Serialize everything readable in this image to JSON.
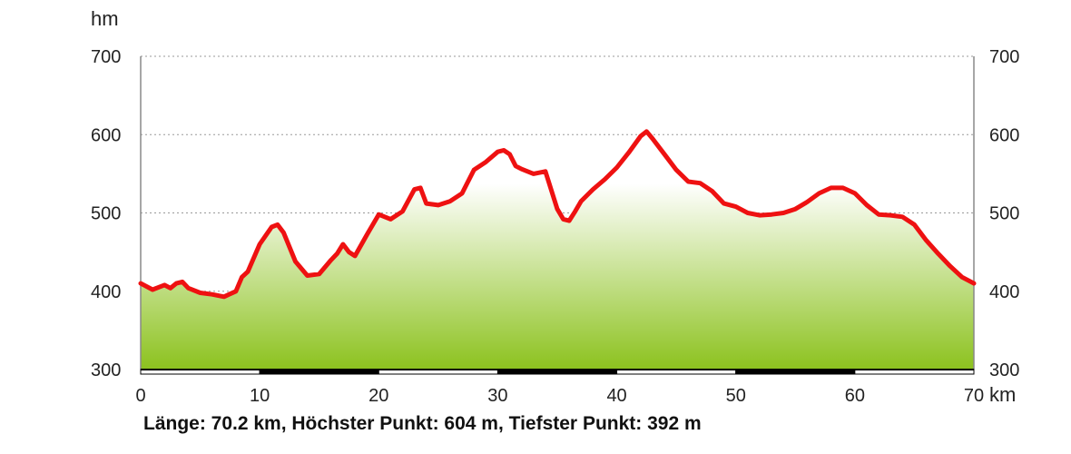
{
  "chart_data": {
    "type": "area",
    "title": "",
    "xlabel": "km",
    "ylabel": "hm",
    "xlim": [
      0,
      70
    ],
    "ylim": [
      300,
      700
    ],
    "x_ticks": [
      "0",
      "10",
      "20",
      "30",
      "40",
      "50",
      "60",
      "70"
    ],
    "y_ticks": [
      "300",
      "400",
      "500",
      "600",
      "700"
    ],
    "grid": true,
    "line_color": "#ee1111",
    "fill_top_color": "#ffffff",
    "fill_bottom_color": "#8cc21e",
    "series": [
      {
        "x": [
          0,
          1,
          1.5,
          2,
          2.5,
          3,
          3.5,
          4,
          5,
          6,
          7,
          8,
          8.5,
          9,
          10,
          11,
          11.5,
          12,
          13,
          14,
          15,
          16,
          16.5,
          17,
          17.5,
          18,
          19,
          20,
          21,
          22,
          23,
          23.5,
          24,
          25,
          26,
          27,
          28,
          29,
          30,
          30.5,
          31,
          31.5,
          32,
          33,
          34,
          35,
          35.5,
          36,
          36.5,
          37,
          38,
          39,
          40,
          41,
          42,
          42.5,
          43,
          44,
          45,
          46,
          47,
          48,
          49,
          50,
          51,
          52,
          53,
          54,
          55,
          56,
          57,
          58,
          59,
          60,
          61,
          62,
          63,
          64,
          65,
          66,
          67,
          68,
          69,
          70
        ],
        "y": [
          410,
          402,
          405,
          408,
          404,
          410,
          412,
          404,
          398,
          396,
          393,
          400,
          418,
          425,
          460,
          482,
          485,
          475,
          438,
          420,
          422,
          440,
          448,
          460,
          450,
          445,
          472,
          498,
          492,
          502,
          530,
          532,
          512,
          510,
          515,
          525,
          555,
          565,
          578,
          580,
          575,
          560,
          556,
          550,
          553,
          505,
          492,
          490,
          502,
          515,
          530,
          543,
          558,
          577,
          598,
          604,
          595,
          575,
          555,
          540,
          538,
          528,
          512,
          508,
          500,
          497,
          498,
          500,
          505,
          514,
          525,
          532,
          532,
          525,
          510,
          498,
          497,
          495,
          485,
          465,
          448,
          432,
          418,
          410
        ]
      }
    ]
  },
  "summary": "Länge: 70.2 km, Höchster Punkt: 604 m, Tiefster Punkt: 392 m"
}
